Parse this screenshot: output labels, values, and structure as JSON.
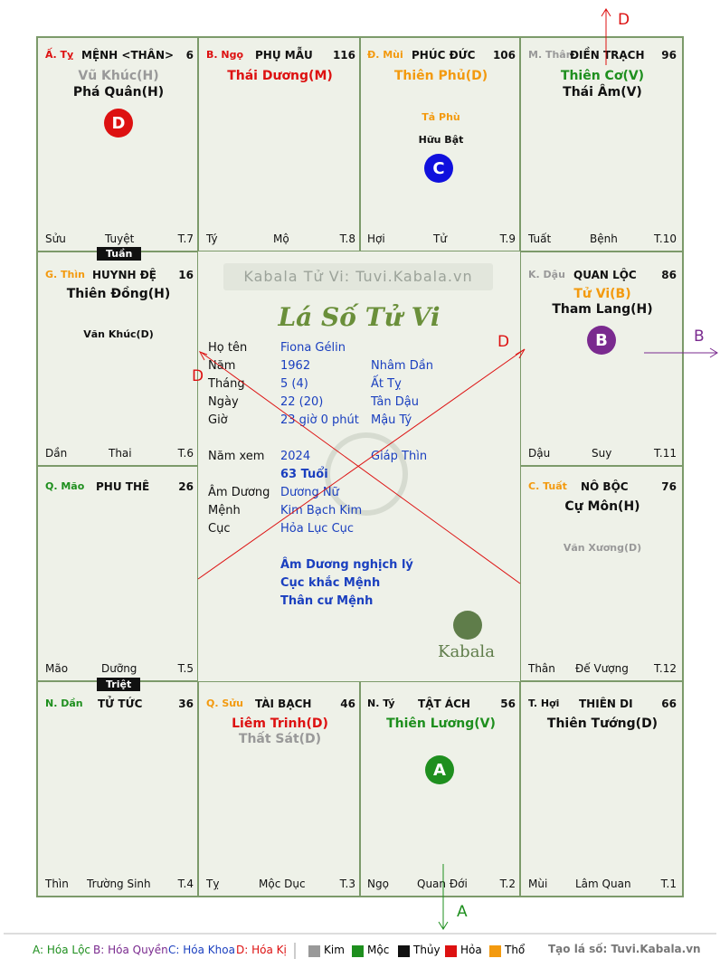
{
  "colors": {
    "red": "#dd1111",
    "green": "#1e8f1e",
    "orange": "#f39a0f",
    "grey": "#999999",
    "black": "#111111",
    "blue": "#1a3fbf",
    "purple": "#7a2a8f"
  },
  "cells": {
    "ty": {
      "branch": "Ấ. Tỵ",
      "palace": "MỆNH <THÂN>",
      "num": "6",
      "stars": [
        "Vũ Khúc(H)",
        "Phá Quân(H)"
      ],
      "foot": [
        "Sửu",
        "Tuyệt",
        "T.7"
      ]
    },
    "ngo": {
      "branch": "B. Ngọ",
      "palace": "PHỤ MẪU",
      "num": "116",
      "stars": [
        "Thái Dương(M)"
      ],
      "foot": [
        "Tý",
        "Mộ",
        "T.8"
      ]
    },
    "mui": {
      "branch": "Đ. Mùi",
      "palace": "PHÚC ĐỨC",
      "num": "106",
      "stars": [
        "Thiên Phủ(D)"
      ],
      "minor": [
        "Tả Phù",
        "Hữu Bật"
      ],
      "foot": [
        "Hợi",
        "Tử",
        "T.9"
      ]
    },
    "than": {
      "branch": "M. Thân",
      "palace": "ĐIỀN TRẠCH",
      "num": "96",
      "stars": [
        "Thiên Cơ(V)",
        "Thái Âm(V)"
      ],
      "foot": [
        "Tuất",
        "Bệnh",
        "T.10"
      ]
    },
    "thin": {
      "branch": "G. Thìn",
      "palace": "HUYNH ĐỆ",
      "num": "16",
      "stars": [
        "Thiên Đồng(H)"
      ],
      "minor": [
        "Văn Khúc(D)"
      ],
      "foot": [
        "Dần",
        "Thai",
        "T.6"
      ]
    },
    "dau": {
      "branch": "K. Dậu",
      "palace": "QUAN LỘC",
      "num": "86",
      "stars": [
        "Tử Vi(B)",
        "Tham Lang(H)"
      ],
      "foot": [
        "Dậu",
        "Suy",
        "T.11"
      ]
    },
    "mao": {
      "branch": "Q. Mão",
      "palace": "PHU THÊ",
      "num": "26",
      "stars": [],
      "foot": [
        "Mão",
        "Dưỡng",
        "T.5"
      ]
    },
    "tuat": {
      "branch": "C. Tuất",
      "palace": "NÔ BỘC",
      "num": "76",
      "stars": [
        "Cự Môn(H)"
      ],
      "minor": [
        "Văn Xương(D)"
      ],
      "foot": [
        "Thân",
        "Đế Vượng",
        "T.12"
      ]
    },
    "dan": {
      "branch": "N. Dần",
      "palace": "TỬ TỨC",
      "num": "36",
      "stars": [],
      "foot": [
        "Thìn",
        "Trường Sinh",
        "T.4"
      ]
    },
    "suu": {
      "branch": "Q. Sửu",
      "palace": "TÀI BẠCH",
      "num": "46",
      "stars": [
        "Liêm Trinh(D)",
        "Thất Sát(D)"
      ],
      "foot": [
        "Tỵ",
        "Mộc Dục",
        "T.3"
      ]
    },
    "ty2": {
      "branch": "N. Tý",
      "palace": "TẬT ÁCH",
      "num": "56",
      "stars": [
        "Thiên Lương(V)"
      ],
      "foot": [
        "Ngọ",
        "Quan Đới",
        "T.2"
      ]
    },
    "hoi": {
      "branch": "T. Hợi",
      "palace": "THIÊN DI",
      "num": "66",
      "stars": [
        "Thiên Tướng(D)"
      ],
      "foot": [
        "Mùi",
        "Lâm Quan",
        "T.1"
      ]
    }
  },
  "tags": {
    "tuan": "Tuần",
    "triet": "Triệt"
  },
  "badges": {
    "a": "A",
    "b": "B",
    "c": "C",
    "d": "D"
  },
  "arrow_labels": {
    "top": "D",
    "right": "B",
    "bottom": "A",
    "center_left": "D",
    "center_right": "D"
  },
  "center": {
    "watermark": "Kabala Tử Vi: Tuvi.Kabala.vn",
    "title": "Lá Số Tử Vi",
    "rows": [
      {
        "label": "Họ tên",
        "v1": "Fiona Gélin",
        "v2": ""
      },
      {
        "label": "Năm",
        "v1": "1962",
        "v2": "Nhâm Dần"
      },
      {
        "label": "Tháng",
        "v1": "5  (4)",
        "v2": "Ất Tỵ"
      },
      {
        "label": "Ngày",
        "v1": "22  (20)",
        "v2": "Tân Dậu"
      },
      {
        "label": "Giờ",
        "v1": "23 giờ 0 phút",
        "v2": "Mậu Tý"
      },
      {
        "label": "Năm xem",
        "v1": "2024",
        "v2": "Giáp Thìn"
      },
      {
        "label": "",
        "v1": "63 Tuổi",
        "v2": ""
      },
      {
        "label": "Âm Dương",
        "v1": "Dương Nữ",
        "v2": ""
      },
      {
        "label": "Mệnh",
        "v1": "Kim Bạch Kim",
        "v2": ""
      },
      {
        "label": "Cục",
        "v1": "Hỏa Lục Cục",
        "v2": ""
      }
    ],
    "notes": [
      "Âm Dương nghịch lý",
      "Cục khắc Mệnh",
      "Thân cư Mệnh"
    ],
    "logo_text": "Kabala"
  },
  "legend": {
    "a": "A: Hóa Lộc",
    "b": "B: Hóa Quyền",
    "c": "C: Hóa Khoa",
    "d": "D: Hóa Kị",
    "kim": "Kim",
    "moc": "Mộc",
    "thuy": "Thủy",
    "hoa": "Hỏa",
    "tho": "Thổ",
    "site": "Tạo lá số: Tuvi.Kabala.vn"
  }
}
